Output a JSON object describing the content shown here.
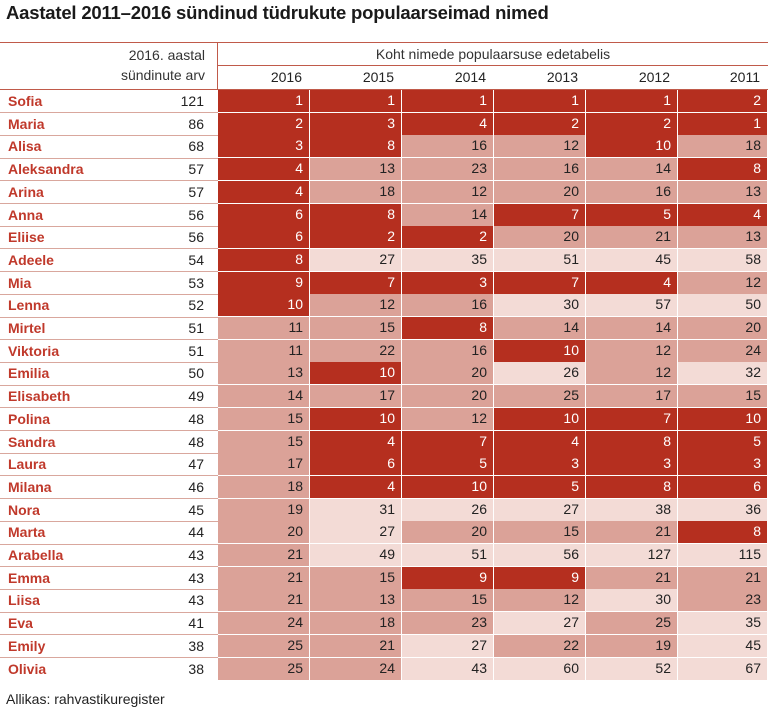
{
  "chart_data": {
    "type": "table",
    "title": "Aastatel 2011–2016 sündinud tüdrukute populaarseimad nimed",
    "left_header": [
      "2016. aastal",
      "sündinute arv"
    ],
    "group_header": "Koht nimede populaarsuse edetabelis",
    "years": [
      "2016",
      "2015",
      "2014",
      "2013",
      "2012",
      "2011"
    ],
    "rows": [
      {
        "name": "Sofia",
        "births": 121,
        "ranks": [
          1,
          1,
          1,
          1,
          1,
          2
        ]
      },
      {
        "name": "Maria",
        "births": 86,
        "ranks": [
          2,
          3,
          4,
          2,
          2,
          1
        ]
      },
      {
        "name": "Alisa",
        "births": 68,
        "ranks": [
          3,
          8,
          16,
          12,
          10,
          18
        ]
      },
      {
        "name": "Aleksandra",
        "births": 57,
        "ranks": [
          4,
          13,
          23,
          16,
          14,
          8
        ]
      },
      {
        "name": "Arina",
        "births": 57,
        "ranks": [
          4,
          18,
          12,
          20,
          16,
          13
        ]
      },
      {
        "name": "Anna",
        "births": 56,
        "ranks": [
          6,
          8,
          14,
          7,
          5,
          4
        ]
      },
      {
        "name": "Eliise",
        "births": 56,
        "ranks": [
          6,
          2,
          2,
          20,
          21,
          13
        ]
      },
      {
        "name": "Adeele",
        "births": 54,
        "ranks": [
          8,
          27,
          35,
          51,
          45,
          58
        ]
      },
      {
        "name": "Mia",
        "births": 53,
        "ranks": [
          9,
          7,
          3,
          7,
          4,
          12
        ]
      },
      {
        "name": "Lenna",
        "births": 52,
        "ranks": [
          10,
          12,
          16,
          30,
          57,
          50
        ]
      },
      {
        "name": "Mirtel",
        "births": 51,
        "ranks": [
          11,
          15,
          8,
          14,
          14,
          20
        ]
      },
      {
        "name": "Viktoria",
        "births": 51,
        "ranks": [
          11,
          22,
          16,
          10,
          12,
          24
        ]
      },
      {
        "name": "Emilia",
        "births": 50,
        "ranks": [
          13,
          10,
          20,
          26,
          12,
          32
        ]
      },
      {
        "name": "Elisabeth",
        "births": 49,
        "ranks": [
          14,
          17,
          20,
          25,
          17,
          15
        ]
      },
      {
        "name": "Polina",
        "births": 48,
        "ranks": [
          15,
          10,
          12,
          10,
          7,
          10
        ]
      },
      {
        "name": "Sandra",
        "births": 48,
        "ranks": [
          15,
          4,
          7,
          4,
          8,
          5
        ]
      },
      {
        "name": "Laura",
        "births": 47,
        "ranks": [
          17,
          6,
          5,
          3,
          3,
          3
        ]
      },
      {
        "name": "Milana",
        "births": 46,
        "ranks": [
          18,
          4,
          10,
          5,
          8,
          6
        ]
      },
      {
        "name": "Nora",
        "births": 45,
        "ranks": [
          19,
          31,
          26,
          27,
          38,
          36
        ]
      },
      {
        "name": "Marta",
        "births": 44,
        "ranks": [
          20,
          27,
          20,
          15,
          21,
          8
        ]
      },
      {
        "name": "Arabella",
        "births": 43,
        "ranks": [
          21,
          49,
          51,
          56,
          127,
          115
        ]
      },
      {
        "name": "Emma",
        "births": 43,
        "ranks": [
          21,
          15,
          9,
          9,
          21,
          21
        ]
      },
      {
        "name": "Liisa",
        "births": 43,
        "ranks": [
          21,
          13,
          15,
          12,
          30,
          23
        ]
      },
      {
        "name": "Eva",
        "births": 41,
        "ranks": [
          24,
          18,
          23,
          27,
          25,
          35
        ]
      },
      {
        "name": "Emily",
        "births": 38,
        "ranks": [
          25,
          21,
          27,
          22,
          19,
          45
        ]
      },
      {
        "name": "Olivia",
        "births": 38,
        "ranks": [
          25,
          24,
          43,
          60,
          52,
          67
        ]
      }
    ],
    "color_scale": {
      "top10": "#b52f1f",
      "rank_11_25": "#dba298",
      "rank_26_plus": "#f3dbd6"
    }
  },
  "source": "Allikas: rahvastikuregister"
}
